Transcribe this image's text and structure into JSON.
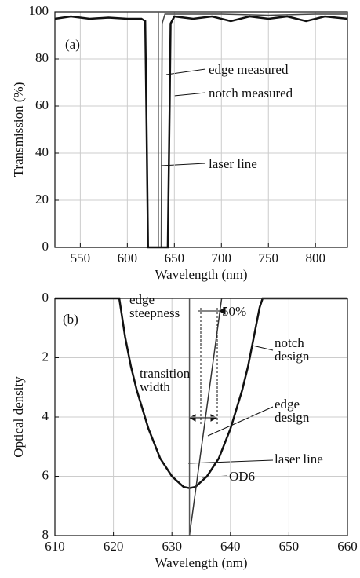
{
  "chart_data": [
    {
      "type": "line",
      "xlabel": "Wavelength (nm)",
      "ylabel": "Transmission (%)",
      "annotations": [
        "(a)"
      ],
      "xlim": [
        523,
        834
      ],
      "ylim": [
        0,
        100
      ],
      "xticks": [
        550,
        600,
        650,
        700,
        750,
        800
      ],
      "yticks": [
        0,
        20,
        40,
        60,
        80,
        100
      ],
      "grid": true,
      "series": [
        {
          "name": "edge measured",
          "color": "#444444",
          "x": [
            523,
            636,
            637,
            640,
            660,
            700,
            750,
            800,
            834
          ],
          "values": [
            0,
            0,
            95,
            99,
            99,
            99,
            98.5,
            99,
            99
          ]
        },
        {
          "name": "notch measured",
          "color": "#111111",
          "x": [
            523,
            540,
            560,
            580,
            600,
            615,
            619,
            620.5,
            622,
            641,
            643,
            645,
            646,
            650,
            670,
            690,
            710,
            730,
            750,
            770,
            790,
            810,
            834
          ],
          "values": [
            97,
            98,
            97,
            97.5,
            97,
            97,
            96,
            50,
            0,
            0,
            0,
            60,
            95,
            98,
            97,
            98,
            96,
            98,
            97,
            98,
            96,
            98,
            97
          ]
        },
        {
          "name": "laser line",
          "color": "#555555",
          "x": [
            633,
            633
          ],
          "values": [
            0,
            100
          ]
        }
      ]
    },
    {
      "type": "line",
      "xlabel": "Wavelength (nm)",
      "ylabel": "Optical density",
      "annotations": [
        "(b)",
        "edge steepness",
        "50%",
        "transition width",
        "OD6"
      ],
      "xlim": [
        610,
        660
      ],
      "ylim": [
        0,
        8
      ],
      "y_inverted": true,
      "xticks": [
        610,
        620,
        630,
        640,
        650,
        660
      ],
      "yticks": [
        0,
        2,
        4,
        6,
        8
      ],
      "grid": true,
      "series": [
        {
          "name": "notch design",
          "color": "#111111",
          "x": [
            610,
            621,
            622,
            623,
            624,
            626,
            628,
            630,
            632,
            633,
            634,
            636,
            638,
            640,
            642,
            643,
            644,
            645,
            645.5,
            660
          ],
          "values": [
            0,
            0,
            1.3,
            2.3,
            3.1,
            4.4,
            5.4,
            6.0,
            6.36,
            6.4,
            6.36,
            6.0,
            5.4,
            4.4,
            3.1,
            2.3,
            1.3,
            0.3,
            0,
            0
          ]
        },
        {
          "name": "edge design",
          "color": "#333333",
          "x": [
            633,
            638.5,
            660
          ],
          "values": [
            8,
            0,
            0
          ]
        },
        {
          "name": "laser line",
          "color": "#555555",
          "x": [
            633,
            633
          ],
          "values": [
            0,
            8
          ]
        }
      ]
    }
  ]
}
